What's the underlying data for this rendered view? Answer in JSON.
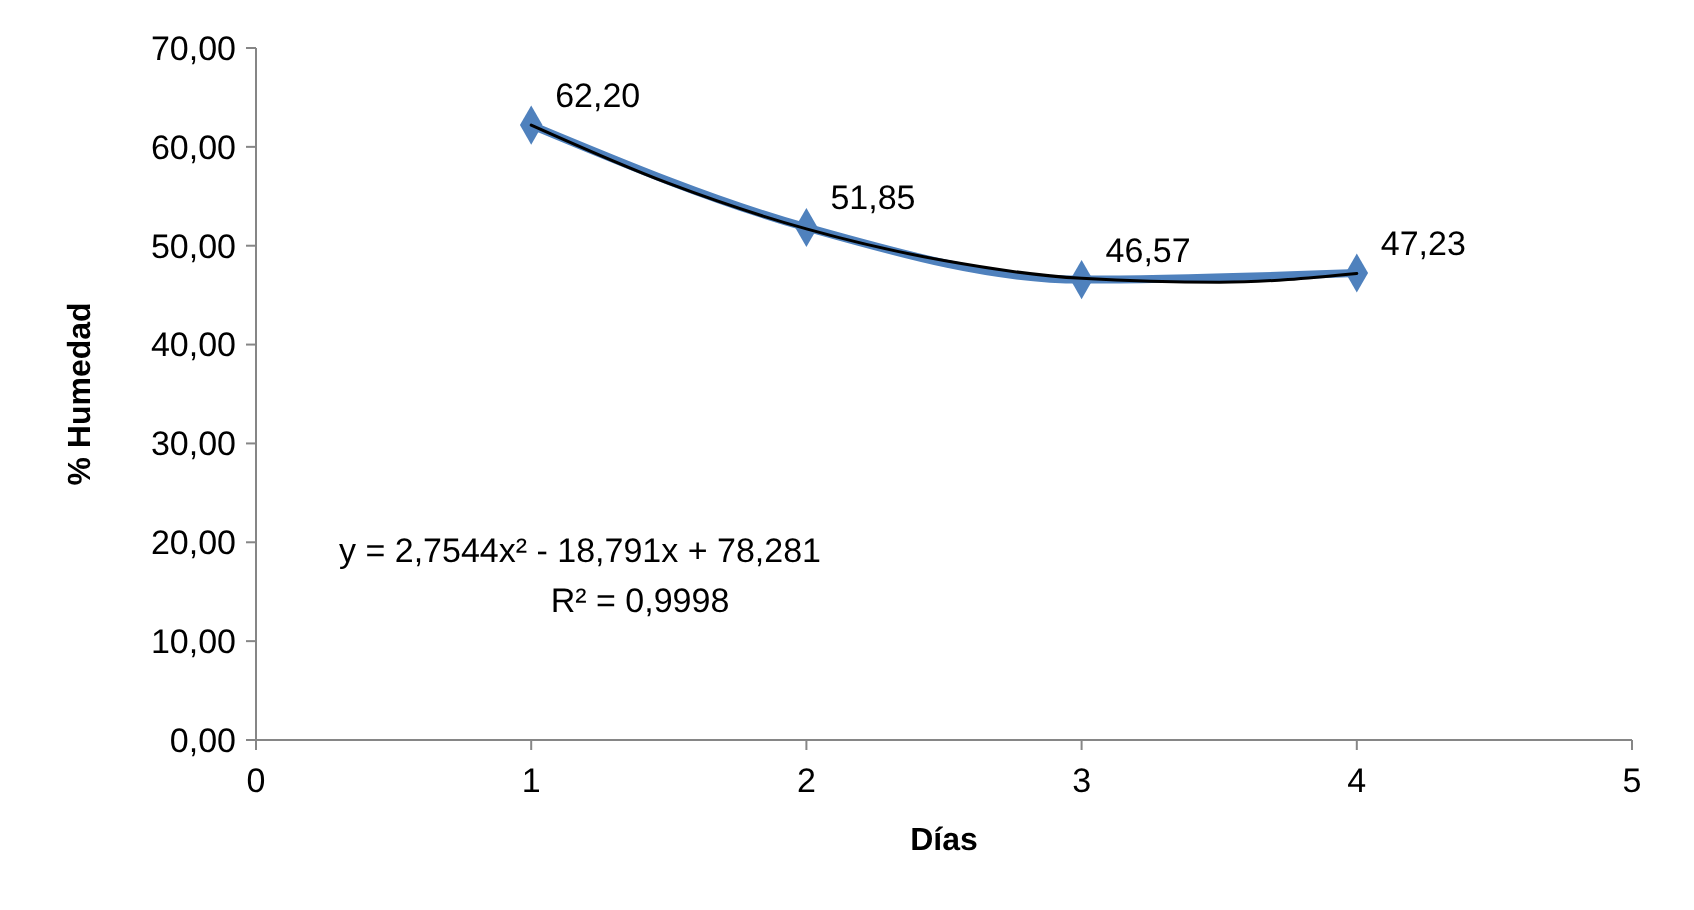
{
  "chart_data": {
    "type": "line",
    "xlabel": "Días",
    "ylabel": "% Humedad",
    "x": [
      1,
      2,
      3,
      4
    ],
    "series": [
      {
        "color": "#4f81bd",
        "marker": "diamond",
        "values": [
          62.2,
          51.85,
          46.57,
          47.23
        ],
        "value_labels": [
          "62,20",
          "51,85",
          "46,57",
          "47,23"
        ]
      },
      {
        "type": "line",
        "color": "#000000",
        "marker": "none",
        "x": [
          1,
          1.5,
          2,
          2.5,
          3,
          3.5,
          4
        ],
        "values": [
          62.2,
          56.3,
          51.7,
          48.5,
          46.7,
          46.3,
          47.2
        ]
      }
    ],
    "xlim": [
      0,
      5
    ],
    "xticks": [
      0,
      1,
      2,
      3,
      4,
      5
    ],
    "ylim": [
      0,
      70
    ],
    "yticks": [
      {
        "value": 0,
        "label": "0,00"
      },
      {
        "value": 10,
        "label": "10,00"
      },
      {
        "value": 20,
        "label": "20,00"
      },
      {
        "value": 30,
        "label": "30,00"
      },
      {
        "value": 40,
        "label": "40,00"
      },
      {
        "value": 50,
        "label": "50,00"
      },
      {
        "value": 60,
        "label": "60,00"
      },
      {
        "value": 70,
        "label": "70,00"
      }
    ],
    "grid": false,
    "annotations": [
      "y = 2,7544x² - 18,791x + 78,281",
      "R² = 0,9998"
    ]
  }
}
